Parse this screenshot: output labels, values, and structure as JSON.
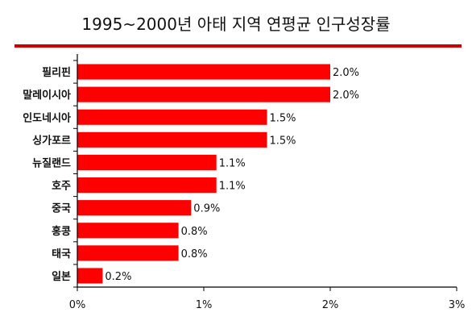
{
  "colors": {
    "bar": "#ff0000",
    "rule": "#cc0000",
    "axis": "#000000",
    "text": "#111111"
  },
  "chart_data": {
    "type": "bar",
    "orientation": "horizontal",
    "title": "1995~2000년 아태 지역 연평균 인구성장률",
    "categories": [
      "필리핀",
      "말레이시아",
      "인도네시아",
      "싱가포르",
      "뉴질랜드",
      "호주",
      "중국",
      "홍콩",
      "태국",
      "일본"
    ],
    "values": [
      2.0,
      2.0,
      1.5,
      1.5,
      1.1,
      1.1,
      0.9,
      0.8,
      0.8,
      0.2
    ],
    "value_labels": [
      "2.0%",
      "2.0%",
      "1.5%",
      "1.5%",
      "1.1%",
      "1.1%",
      "0.9%",
      "0.8%",
      "0.8%",
      "0.2%"
    ],
    "xlim": [
      0,
      3
    ],
    "xticks": [
      0,
      1,
      2,
      3
    ],
    "xtick_labels": [
      "0%",
      "1%",
      "2%",
      "3%"
    ],
    "grid": false,
    "legend": "none"
  }
}
